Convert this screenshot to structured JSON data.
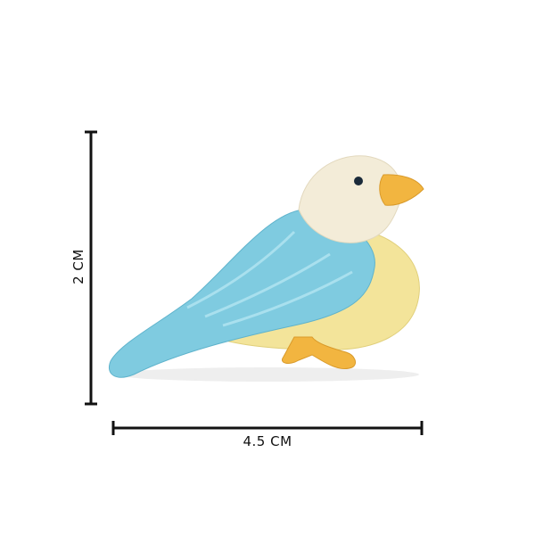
{
  "dimensions": {
    "height_label": "2 CM",
    "width_label": "4.5 CM"
  },
  "colors": {
    "background": "#ffffff",
    "line": "#111111",
    "wing": "#7fcbe0",
    "belly": "#f3e49a",
    "head": "#f3ecd8",
    "beak": "#f2b540"
  }
}
